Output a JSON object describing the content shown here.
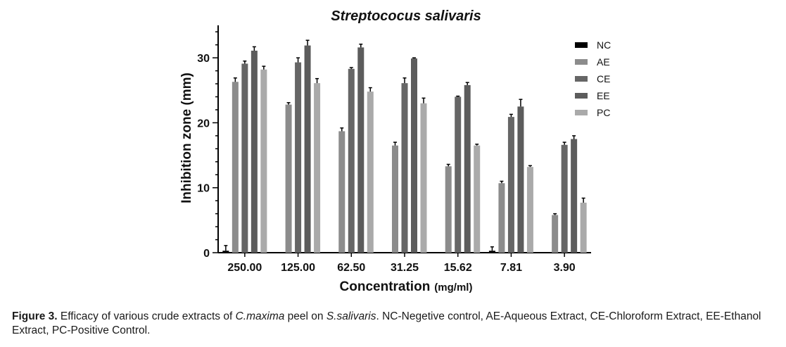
{
  "chart_data": {
    "type": "bar",
    "title": "Streptococus salivaris",
    "xlabel": "Concentration",
    "xlabel_unit": "(mg/ml)",
    "ylabel": "Inhibition zone (mm)",
    "ylim": [
      0,
      35
    ],
    "yticks": [
      0,
      10,
      20,
      30
    ],
    "categories": [
      "250.00",
      "125.00",
      "62.50",
      "31.25",
      "15.62",
      "7.81",
      "3.90"
    ],
    "series": [
      {
        "name": "NC",
        "color": "#000000",
        "values": [
          0.3,
          0,
          0,
          0,
          0,
          0.3,
          0
        ],
        "errors": [
          0.8,
          0,
          0,
          0,
          0,
          0.6,
          0
        ]
      },
      {
        "name": "AE",
        "color": "#8c8c8c",
        "values": [
          26.3,
          22.8,
          18.7,
          16.5,
          13.3,
          10.7,
          5.8
        ],
        "errors": [
          0.6,
          0.3,
          0.5,
          0.5,
          0.3,
          0.3,
          0.2
        ]
      },
      {
        "name": "CE",
        "color": "#666666",
        "values": [
          29.1,
          29.3,
          28.3,
          26.1,
          24.0,
          20.9,
          16.6
        ],
        "errors": [
          0.4,
          0.7,
          0.2,
          0.8,
          0.1,
          0.4,
          0.4
        ]
      },
      {
        "name": "EE",
        "color": "#5c5c5c",
        "values": [
          31.1,
          31.9,
          31.6,
          29.9,
          25.8,
          22.5,
          17.5
        ],
        "errors": [
          0.6,
          0.8,
          0.5,
          0.1,
          0.4,
          1.1,
          0.5
        ]
      },
      {
        "name": "PC",
        "color": "#aaaaaa",
        "values": [
          28.2,
          26.1,
          24.8,
          23.0,
          16.5,
          13.2,
          7.7
        ],
        "errors": [
          0.5,
          0.7,
          0.6,
          0.8,
          0.2,
          0.2,
          0.7
        ]
      }
    ],
    "legend_position": "right",
    "grid": false
  },
  "caption": {
    "label": "Figure 3.",
    "t1": " Efficacy of various crude extracts of ",
    "species1": "C.maxima",
    "t2": " peel on ",
    "species2": "S.salivaris",
    "t3": ". NC-Negetive control, AE-Aqueous Extract, CE-Chloroform Extract, EE-Ethanol Extract, PC-Positive Control."
  }
}
